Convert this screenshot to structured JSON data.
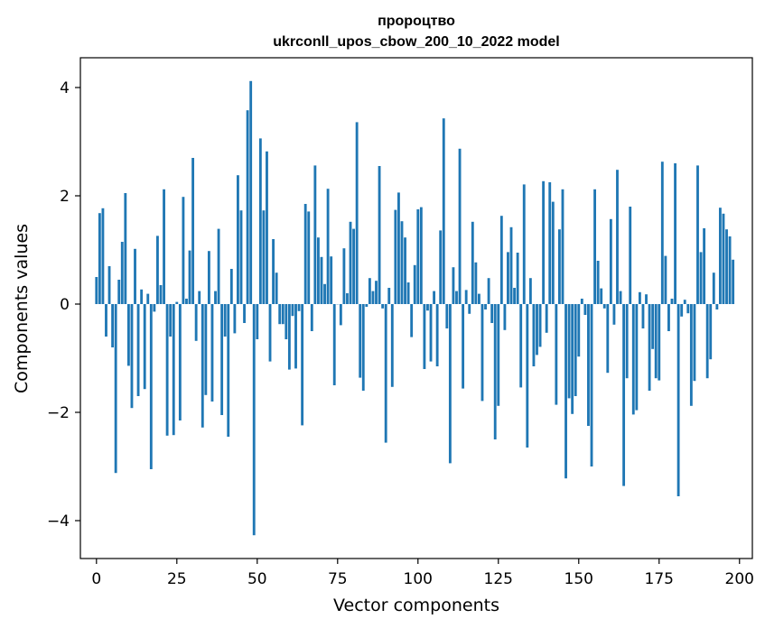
{
  "chart_data": {
    "type": "bar",
    "title_line1": "пророцтво",
    "title_line2": "ukrconll_upos_cbow_200_10_2022 model",
    "xlabel": "Vector components",
    "ylabel": "Components values",
    "xlim": [
      -5,
      204
    ],
    "ylim": [
      -4.7,
      4.55
    ],
    "xticks": [
      0,
      25,
      50,
      75,
      100,
      125,
      150,
      175,
      200
    ],
    "yticks": [
      -4,
      -2,
      0,
      2,
      4
    ],
    "ytick_labels": [
      "−4",
      "−2",
      "0",
      "2",
      "4"
    ],
    "bar_color": "#1f77b4",
    "grid": false,
    "values": [
      0.5,
      1.68,
      1.77,
      -0.6,
      0.7,
      -0.8,
      -3.12,
      0.45,
      1.15,
      2.05,
      -1.14,
      -1.92,
      1.02,
      -1.7,
      0.27,
      -1.57,
      0.19,
      -3.05,
      -0.14,
      1.26,
      0.35,
      2.12,
      -2.43,
      -0.6,
      -2.42,
      0.04,
      -2.15,
      1.98,
      0.1,
      0.99,
      2.7,
      -0.68,
      0.24,
      -2.28,
      -1.68,
      0.98,
      -1.8,
      0.24,
      1.39,
      -2.05,
      -0.6,
      -2.45,
      0.65,
      -0.54,
      2.38,
      1.73,
      -0.35,
      3.58,
      4.12,
      -4.27,
      -0.65,
      3.06,
      1.73,
      2.82,
      -1.06,
      1.2,
      0.58,
      -0.37,
      -0.37,
      -0.65,
      -1.21,
      -0.22,
      -1.19,
      -0.13,
      -2.24,
      1.85,
      1.71,
      -0.5,
      2.56,
      1.23,
      0.87,
      0.37,
      2.13,
      0.88,
      -1.5,
      0.0,
      -0.39,
      1.03,
      0.2,
      1.52,
      1.39,
      3.36,
      -1.36,
      -1.6,
      -0.05,
      0.48,
      0.24,
      0.43,
      2.55,
      -0.08,
      -2.56,
      0.3,
      -1.53,
      1.74,
      2.06,
      1.53,
      1.23,
      0.4,
      -0.61,
      0.72,
      1.75,
      1.79,
      -1.2,
      -0.12,
      -1.06,
      0.24,
      -1.15,
      1.36,
      3.43,
      -0.45,
      -2.94,
      0.68,
      0.24,
      2.87,
      -1.56,
      0.26,
      -0.18,
      1.52,
      0.77,
      0.19,
      -1.79,
      -0.1,
      0.48,
      -0.35,
      -2.5,
      -1.88,
      1.63,
      -0.48,
      0.96,
      1.42,
      0.3,
      0.95,
      -1.54,
      2.21,
      -2.65,
      0.48,
      -1.15,
      -0.94,
      -0.79,
      2.27,
      -0.53,
      2.25,
      1.89,
      -1.86,
      1.38,
      2.12,
      -3.22,
      -1.74,
      -2.03,
      -1.7,
      -0.97,
      0.1,
      -0.2,
      -2.25,
      -3.0,
      2.12,
      0.8,
      0.29,
      -0.08,
      -1.27,
      1.57,
      -0.38,
      2.48,
      0.24,
      -3.36,
      -1.37,
      1.8,
      -2.04,
      -1.96,
      0.22,
      -0.45,
      0.18,
      -1.6,
      -0.83,
      -1.37,
      -1.41,
      2.63,
      0.89,
      -0.5,
      0.1,
      2.6,
      -3.55,
      -0.23,
      0.08,
      -0.17,
      -1.88,
      -1.42,
      2.56,
      0.96,
      1.4,
      -1.37,
      -1.02,
      0.58,
      -0.1,
      1.78,
      1.67,
      1.38,
      1.25,
      0.82
    ]
  }
}
